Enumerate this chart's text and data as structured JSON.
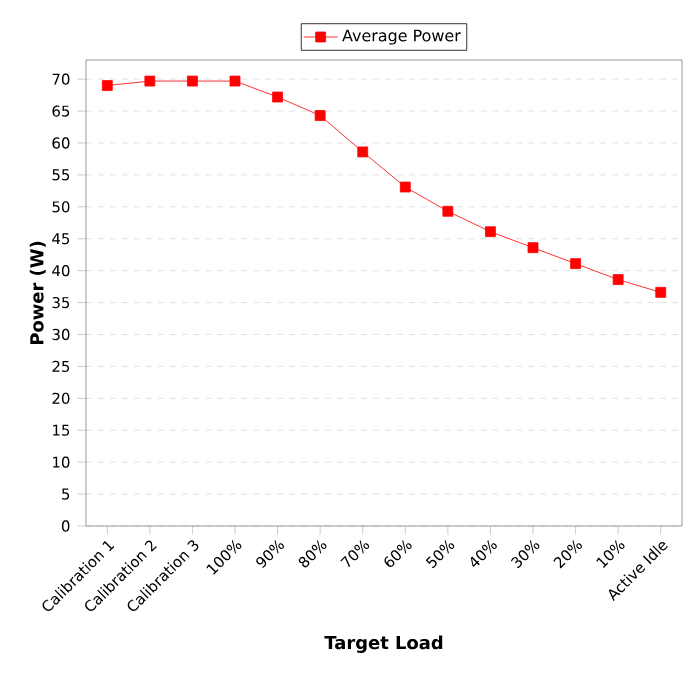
{
  "chart_data": {
    "type": "line",
    "xlabel": "Target Load",
    "ylabel": "Power (W)",
    "categories": [
      "Calibration 1",
      "Calibration 2",
      "Calibration 3",
      "100%",
      "90%",
      "80%",
      "70%",
      "60%",
      "50%",
      "40%",
      "30%",
      "20%",
      "10%",
      "Active Idle"
    ],
    "series": [
      {
        "name": "Average Power",
        "color": "#ff0000",
        "values": [
          69.0,
          69.7,
          69.7,
          69.7,
          67.2,
          64.3,
          58.6,
          53.1,
          49.3,
          46.1,
          43.6,
          41.1,
          38.6,
          36.6
        ]
      }
    ],
    "ylim": [
      0,
      73
    ],
    "yticks": [
      0,
      5,
      10,
      15,
      20,
      25,
      30,
      35,
      40,
      45,
      50,
      55,
      60,
      65,
      70
    ],
    "grid": "y",
    "legend": "top",
    "marker": "square",
    "line_style": "solid"
  }
}
